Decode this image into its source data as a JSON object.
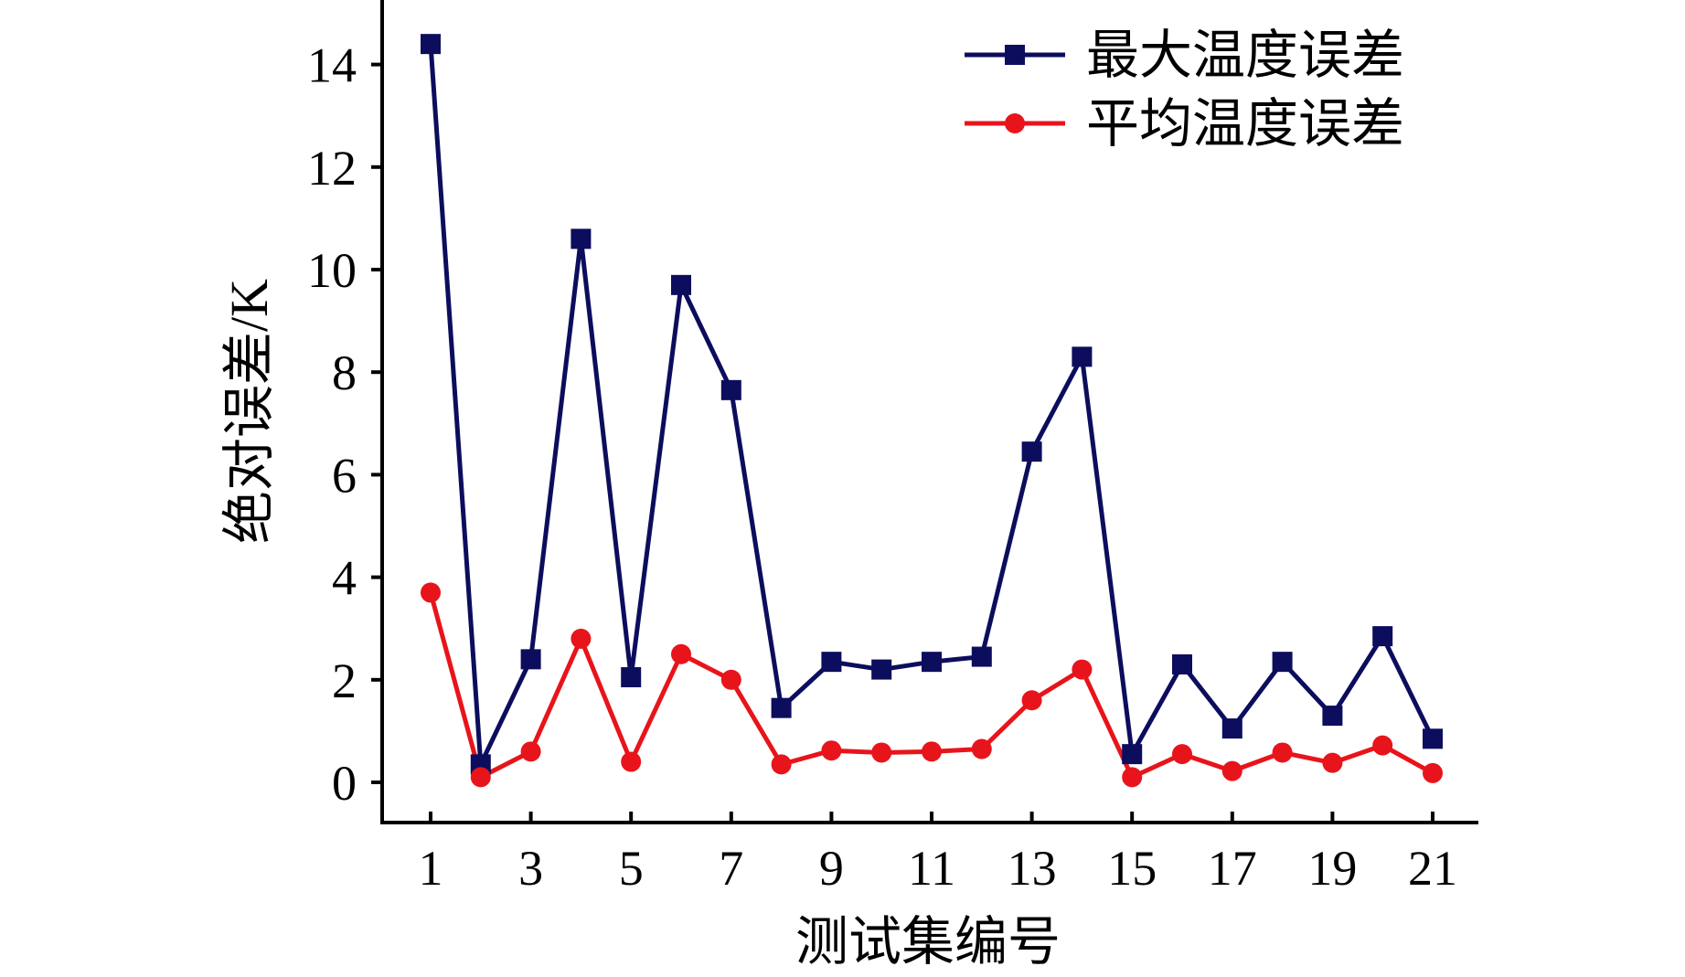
{
  "chart_data": {
    "type": "line",
    "title": "",
    "xlabel": "测试集编号",
    "ylabel": "绝对误差/K",
    "x": [
      1,
      2,
      3,
      4,
      5,
      6,
      7,
      8,
      9,
      10,
      11,
      12,
      13,
      14,
      15,
      16,
      17,
      18,
      19,
      20,
      21
    ],
    "x_tick_labels": [
      "1",
      "3",
      "5",
      "7",
      "9",
      "11",
      "13",
      "15",
      "17",
      "19",
      "21"
    ],
    "y_tick_labels": [
      "0",
      "2",
      "4",
      "6",
      "8",
      "10",
      "12",
      "14"
    ],
    "xlim": [
      0,
      22
    ],
    "ylim": [
      -0.7,
      15.2
    ],
    "grid": false,
    "legend_position": "top-right",
    "series": [
      {
        "name": "最大温度误差",
        "color": "#0d0d5e",
        "marker": "square",
        "values": [
          14.4,
          0.35,
          2.4,
          10.6,
          2.05,
          9.7,
          7.65,
          1.45,
          2.35,
          2.2,
          2.35,
          2.45,
          6.45,
          8.3,
          0.55,
          2.3,
          1.05,
          2.35,
          1.3,
          2.85,
          0.85
        ]
      },
      {
        "name": "平均温度误差",
        "color": "#e8141b",
        "marker": "circle",
        "values": [
          3.7,
          0.1,
          0.6,
          2.8,
          0.4,
          2.5,
          2.0,
          0.35,
          0.62,
          0.58,
          0.6,
          0.65,
          1.6,
          2.2,
          0.1,
          0.55,
          0.22,
          0.58,
          0.38,
          0.72,
          0.18
        ]
      }
    ]
  }
}
